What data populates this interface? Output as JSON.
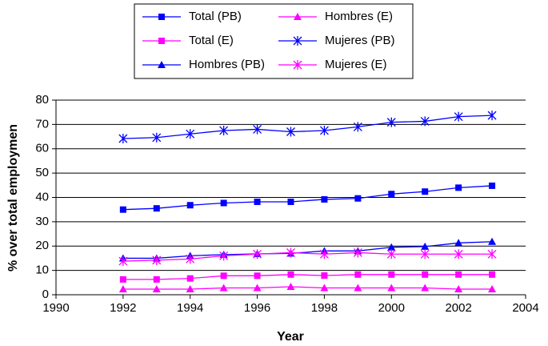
{
  "chart_data": {
    "type": "line",
    "x": [
      1992,
      1993,
      1994,
      1995,
      1996,
      1997,
      1998,
      1999,
      2000,
      2001,
      2002,
      2003
    ],
    "series": [
      {
        "name": "Total (PB)",
        "color": "#0000ff",
        "marker": "square",
        "values": [
          35,
          35.5,
          36.8,
          37.7,
          38.2,
          38.2,
          39.2,
          39.6,
          41.4,
          42.4,
          44,
          44.8
        ]
      },
      {
        "name": "Total (E)",
        "color": "#ff00ff",
        "marker": "square",
        "values": [
          6.3,
          6.3,
          6.7,
          7.8,
          7.8,
          8.3,
          7.9,
          8.3,
          8.3,
          8.3,
          8.3,
          8.3
        ]
      },
      {
        "name": "Hombres (PB)",
        "color": "#0000ff",
        "marker": "triangle",
        "values": [
          15,
          15,
          16,
          16.5,
          16.8,
          17,
          18,
          18,
          19.5,
          19.8,
          21.3,
          21.8
        ]
      },
      {
        "name": "Hombres (E)",
        "color": "#ff00ff",
        "marker": "triangle",
        "values": [
          2.3,
          2.3,
          2.3,
          2.8,
          2.8,
          3.3,
          2.8,
          2.8,
          2.8,
          2.8,
          2.3,
          2.3
        ]
      },
      {
        "name": "Mujeres (PB)",
        "color": "#0000ff",
        "marker": "star",
        "values": [
          64.2,
          64.6,
          66.1,
          67.5,
          68,
          67,
          67.5,
          69,
          70.9,
          71.3,
          73.2,
          73.7
        ]
      },
      {
        "name": "Mujeres (E)",
        "color": "#ff00ff",
        "marker": "star",
        "values": [
          13.8,
          14.2,
          14.7,
          16,
          16.7,
          17.3,
          16.7,
          17.3,
          16.7,
          16.7,
          16.7,
          16.7
        ]
      }
    ],
    "x_label": "Year",
    "y_label": "% over total employmen",
    "xlim": [
      1990,
      2004
    ],
    "xticks": [
      1990,
      1992,
      1994,
      1996,
      1998,
      2000,
      2002,
      2004
    ],
    "ylim": [
      0,
      80
    ],
    "yticks": [
      0,
      10,
      20,
      30,
      40,
      50,
      60,
      70,
      80
    ],
    "grid": true,
    "legend": "top"
  }
}
